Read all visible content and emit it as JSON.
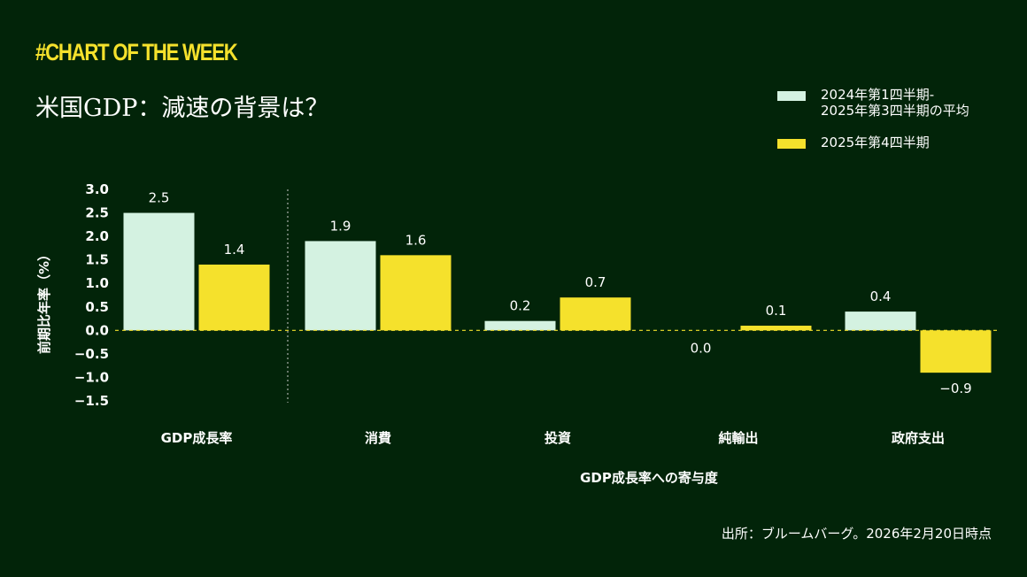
{
  "brand": "#CHART OF THE WEEK",
  "title": "米国GDP：減速の背景は？",
  "source": "出所：ブルームバーグ。2026年2月20日時点",
  "colors": {
    "background": "#022409",
    "series1": "#d4f2e1",
    "series2": "#f5e12c",
    "brand": "#f5e12c"
  },
  "chart_data": {
    "type": "bar",
    "categories": [
      "GDP成長率",
      "消費",
      "投資",
      "純輸出",
      "政府支出"
    ],
    "series": [
      {
        "name": "2024年第1四半期-\n2025年第3四半期の平均",
        "values": [
          2.5,
          1.9,
          0.2,
          0.0,
          0.4
        ],
        "labels": [
          "2.5",
          "1.9",
          "0.2",
          "0.0",
          "0.4"
        ]
      },
      {
        "name": "2025年第4四半期",
        "values": [
          1.4,
          1.6,
          0.7,
          0.1,
          -0.9
        ],
        "labels": [
          "1.4",
          "1.6",
          "0.7",
          "0.1",
          "−0.9"
        ]
      }
    ],
    "ylabel": "前期比年率（%）",
    "xlabel": "GDP成長率への寄与度",
    "ylim": [
      -1.5,
      3.0
    ],
    "yticks": [
      "3.0",
      "2.5",
      "2.0",
      "1.5",
      "1.0",
      "0.5",
      "0.0",
      "−0.5",
      "−1.0",
      "−1.5"
    ],
    "grid": false,
    "legend": "top-right"
  }
}
